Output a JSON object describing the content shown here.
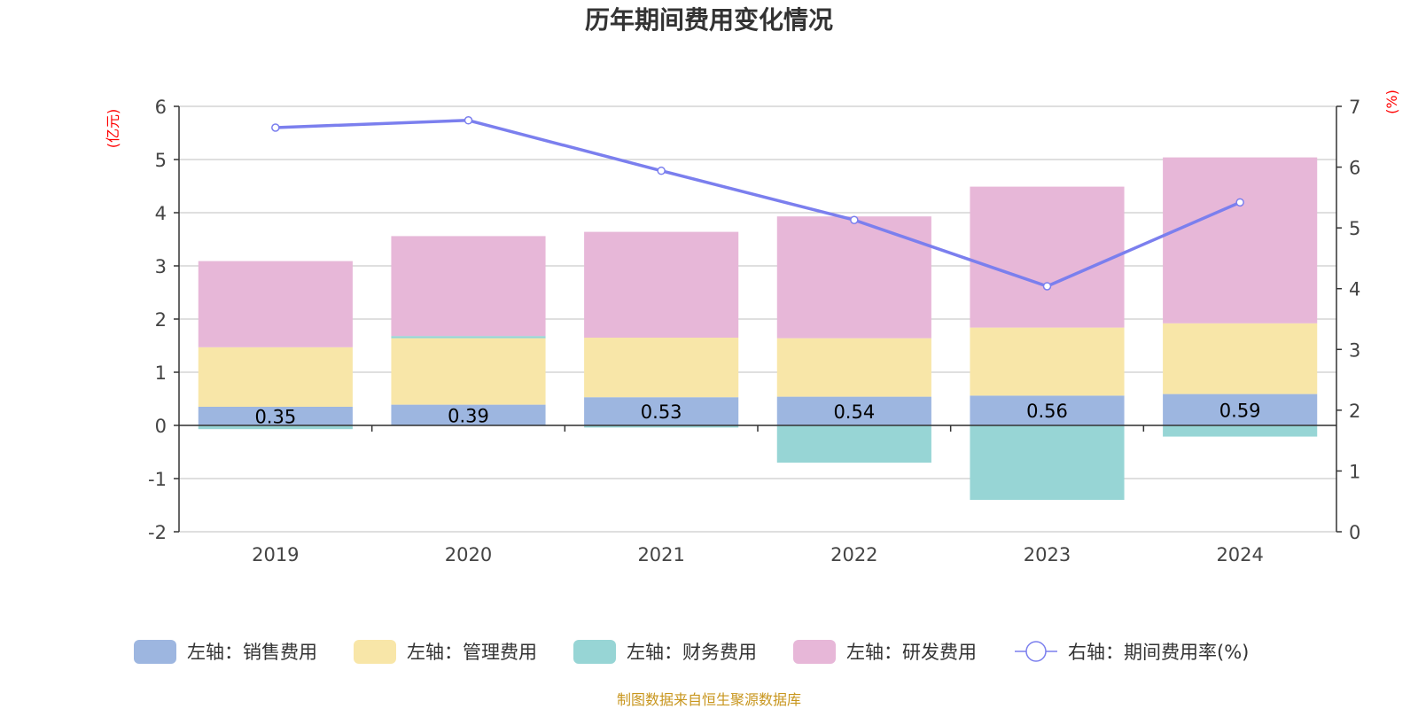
{
  "chart_data": {
    "type": "bar",
    "title": "历年期间费用变化情况",
    "categories": [
      "2019",
      "2020",
      "2021",
      "2022",
      "2023",
      "2024"
    ],
    "left_axis": {
      "unit": "(亿元)",
      "ylim": [
        -2,
        6
      ],
      "ticks": [
        "-2",
        "-1",
        "0",
        "1",
        "2",
        "3",
        "4",
        "5",
        "6"
      ]
    },
    "right_axis": {
      "unit": "(%)",
      "ylim": [
        0,
        7
      ],
      "ticks": [
        "0",
        "1",
        "2",
        "3",
        "4",
        "5",
        "6",
        "7"
      ]
    },
    "series": [
      {
        "name": "左轴：销售费用",
        "type": "bar",
        "axis": "left",
        "color": "#9db6e0",
        "values": [
          0.35,
          0.39,
          0.53,
          0.54,
          0.56,
          0.59
        ],
        "labels": [
          "0.35",
          "0.39",
          "0.53",
          "0.54",
          "0.56",
          "0.59"
        ]
      },
      {
        "name": "左轴：管理费用",
        "type": "bar",
        "axis": "left",
        "color": "#f8e6a8",
        "values": [
          1.12,
          1.25,
          1.12,
          1.1,
          1.28,
          1.33
        ]
      },
      {
        "name": "左轴：财务费用",
        "type": "bar",
        "axis": "left",
        "color": "#97d5d5",
        "values": [
          -0.07,
          0.04,
          -0.04,
          -0.7,
          -1.4,
          -0.21
        ]
      },
      {
        "name": "左轴：研发费用",
        "type": "bar",
        "axis": "left",
        "color": "#e7b7d8",
        "values": [
          1.62,
          1.88,
          1.99,
          2.29,
          2.65,
          3.12
        ]
      },
      {
        "name": "右轴：期间费用率(%)",
        "type": "line",
        "axis": "right",
        "color": "#7b7fee",
        "values": [
          6.65,
          6.77,
          5.94,
          5.13,
          4.04,
          5.42
        ]
      }
    ],
    "legend_position": "bottom",
    "grid": true
  },
  "source": "制图数据来自恒生聚源数据库"
}
